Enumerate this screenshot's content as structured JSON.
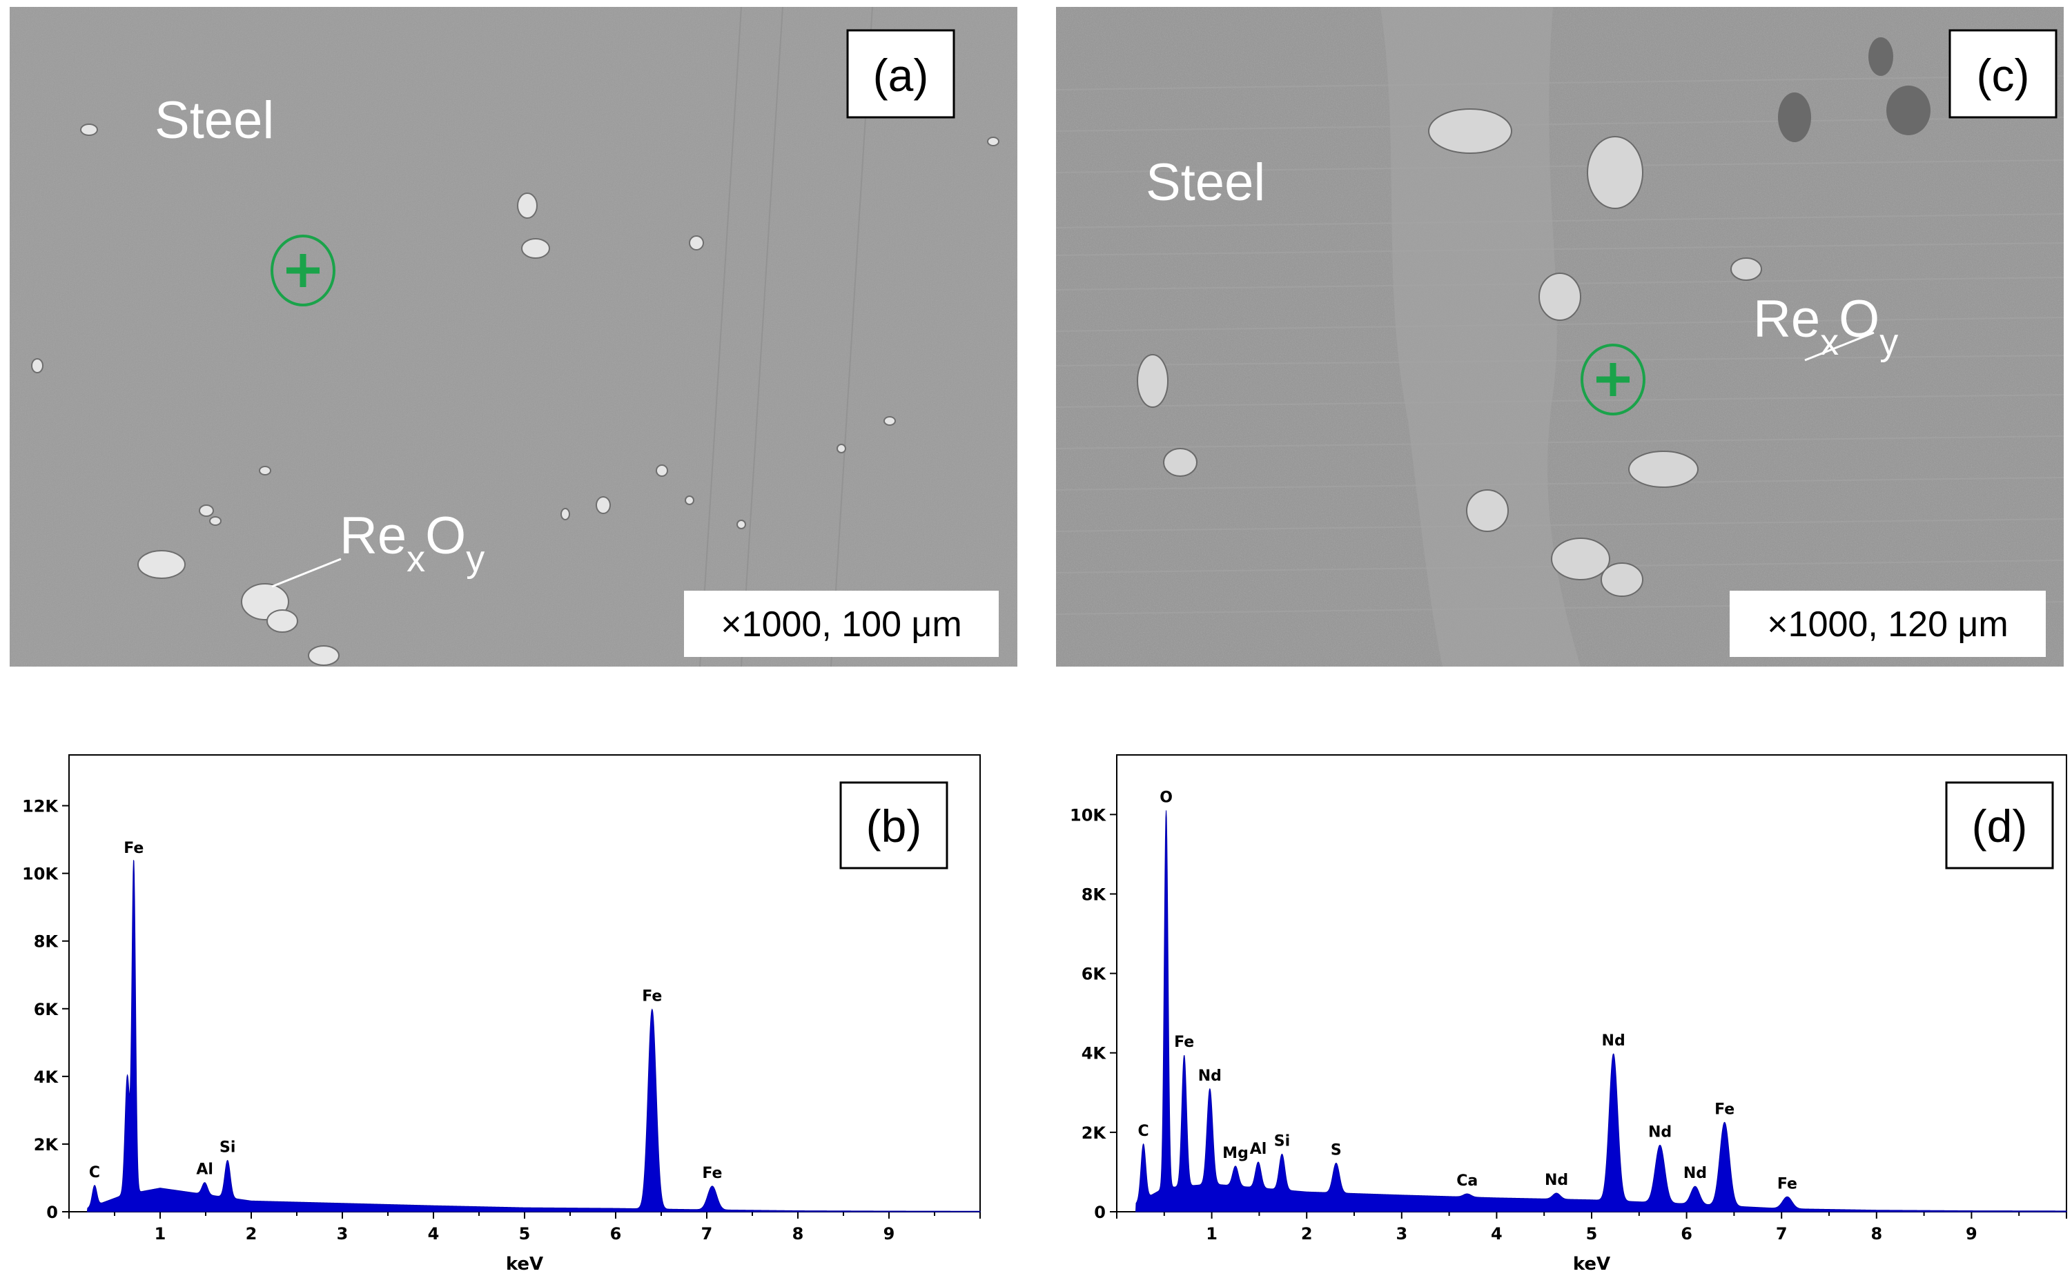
{
  "panels": {
    "a": {
      "label": "(a)",
      "region_label": "Steel",
      "particle_label_main": "Re",
      "particle_label_sub1": "x",
      "particle_label_mid": "O",
      "particle_label_sub2": "y",
      "scale": "×1000, 100 μm",
      "marker": "green-cross-circle"
    },
    "c": {
      "label": "(c)",
      "region_label": "Steel",
      "particle_label_main": "Re",
      "particle_label_sub1": "x",
      "particle_label_mid": "O",
      "particle_label_sub2": "y",
      "scale": "×1000, 120 μm",
      "marker": "green-cross-circle"
    },
    "b": {
      "label": "(b)",
      "xlabel": "keV"
    },
    "d": {
      "label": "(d)",
      "xlabel": "keV"
    }
  },
  "colors": {
    "spectrum": "#0000cc",
    "marker": "#1aa34a",
    "sem_bg": "#9a9a9a"
  },
  "chart_data": [
    {
      "id": "b",
      "type": "area",
      "xlabel": "keV",
      "ylabel": "",
      "xlim": [
        0,
        10
      ],
      "ylim": [
        0,
        13500
      ],
      "xticks": [
        "1",
        "2",
        "3",
        "4",
        "5",
        "6",
        "7",
        "8",
        "9"
      ],
      "yticks": [
        {
          "value": 0,
          "label": "0"
        },
        {
          "value": 2000,
          "label": "2K"
        },
        {
          "value": 4000,
          "label": "4K"
        },
        {
          "value": 6000,
          "label": "6K"
        },
        {
          "value": 8000,
          "label": "8K"
        },
        {
          "value": 10000,
          "label": "10K"
        },
        {
          "value": 12000,
          "label": "12K"
        }
      ],
      "peaks": [
        {
          "element": "C",
          "x": 0.28,
          "y": 600,
          "w": 0.025
        },
        {
          "element": "",
          "x": 0.64,
          "y": 3500,
          "w": 0.025
        },
        {
          "element": "Fe",
          "x": 0.71,
          "y": 9800,
          "w": 0.02
        },
        {
          "element": "Al",
          "x": 1.49,
          "y": 350,
          "w": 0.03
        },
        {
          "element": "Si",
          "x": 1.74,
          "y": 1100,
          "w": 0.03
        },
        {
          "element": "Fe",
          "x": 6.4,
          "y": 5900,
          "w": 0.045
        },
        {
          "element": "Fe",
          "x": 7.06,
          "y": 700,
          "w": 0.05
        }
      ],
      "background": {
        "x": [
          0.2,
          0.6,
          1.0,
          2.0,
          3.0,
          4.0,
          5.0,
          6.0,
          7.0,
          8.0,
          9.0,
          10.0
        ],
        "y": [
          100,
          500,
          700,
          320,
          250,
          180,
          120,
          100,
          60,
          30,
          20,
          15
        ]
      },
      "peak_labels": [
        {
          "text": "C",
          "x": 0.28,
          "y": 600
        },
        {
          "text": "Fe",
          "x": 0.71,
          "y": 9800
        },
        {
          "text": "Al",
          "x": 1.49,
          "y": 350
        },
        {
          "text": "Si",
          "x": 1.74,
          "y": 1100
        },
        {
          "text": "Fe",
          "x": 6.4,
          "y": 5900
        },
        {
          "text": "Fe",
          "x": 7.06,
          "y": 700
        }
      ]
    },
    {
      "id": "d",
      "type": "area",
      "xlabel": "keV",
      "ylabel": "",
      "xlim": [
        0,
        10
      ],
      "ylim": [
        0,
        11500
      ],
      "xticks": [
        "1",
        "2",
        "3",
        "4",
        "5",
        "6",
        "7",
        "8",
        "9"
      ],
      "yticks": [
        {
          "value": 0,
          "label": "0"
        },
        {
          "value": 2000,
          "label": "2K"
        },
        {
          "value": 4000,
          "label": "4K"
        },
        {
          "value": 6000,
          "label": "6K"
        },
        {
          "value": 8000,
          "label": "8K"
        },
        {
          "value": 10000,
          "label": "10K"
        }
      ],
      "peaks": [
        {
          "element": "C",
          "x": 0.28,
          "y": 1400,
          "w": 0.025
        },
        {
          "element": "O",
          "x": 0.52,
          "y": 9500,
          "w": 0.02
        },
        {
          "element": "Fe",
          "x": 0.71,
          "y": 3300,
          "w": 0.025
        },
        {
          "element": "Nd",
          "x": 0.98,
          "y": 2400,
          "w": 0.03
        },
        {
          "element": "Mg",
          "x": 1.25,
          "y": 500,
          "w": 0.03
        },
        {
          "element": "Al",
          "x": 1.49,
          "y": 650,
          "w": 0.03
        },
        {
          "element": "Si",
          "x": 1.74,
          "y": 900,
          "w": 0.03
        },
        {
          "element": "S",
          "x": 2.31,
          "y": 750,
          "w": 0.035
        },
        {
          "element": "Ca",
          "x": 3.69,
          "y": 80,
          "w": 0.04
        },
        {
          "element": "Nd",
          "x": 4.63,
          "y": 150,
          "w": 0.04
        },
        {
          "element": "Nd",
          "x": 5.23,
          "y": 3700,
          "w": 0.045
        },
        {
          "element": "Nd",
          "x": 5.72,
          "y": 1450,
          "w": 0.05
        },
        {
          "element": "Nd",
          "x": 6.09,
          "y": 450,
          "w": 0.045
        },
        {
          "element": "Fe",
          "x": 6.4,
          "y": 2100,
          "w": 0.05
        },
        {
          "element": "Fe",
          "x": 7.06,
          "y": 300,
          "w": 0.05
        }
      ],
      "background": {
        "x": [
          0.2,
          0.5,
          1.0,
          2.0,
          3.0,
          4.0,
          5.0,
          6.0,
          7.0,
          8.0,
          9.0,
          10.0
        ],
        "y": [
          200,
          600,
          700,
          500,
          420,
          350,
          300,
          200,
          80,
          40,
          25,
          20
        ]
      },
      "peak_labels": [
        {
          "text": "C",
          "x": 0.28,
          "y": 1400
        },
        {
          "text": "O",
          "x": 0.52,
          "y": 9500
        },
        {
          "text": "Fe",
          "x": 0.71,
          "y": 3300
        },
        {
          "text": "Nd",
          "x": 0.98,
          "y": 2400
        },
        {
          "text": "Mg",
          "x": 1.25,
          "y": 500
        },
        {
          "text": "Al",
          "x": 1.49,
          "y": 650
        },
        {
          "text": "Si",
          "x": 1.74,
          "y": 900
        },
        {
          "text": "S",
          "x": 2.31,
          "y": 750
        },
        {
          "text": "Ca",
          "x": 3.69,
          "y": 80
        },
        {
          "text": "Nd",
          "x": 4.63,
          "y": 150
        },
        {
          "text": "Nd",
          "x": 5.23,
          "y": 3700
        },
        {
          "text": "Nd",
          "x": 5.72,
          "y": 1450
        },
        {
          "text": "Nd",
          "x": 6.09,
          "y": 450
        },
        {
          "text": "Fe",
          "x": 6.4,
          "y": 2100
        },
        {
          "text": "Fe",
          "x": 7.06,
          "y": 300
        }
      ]
    }
  ]
}
